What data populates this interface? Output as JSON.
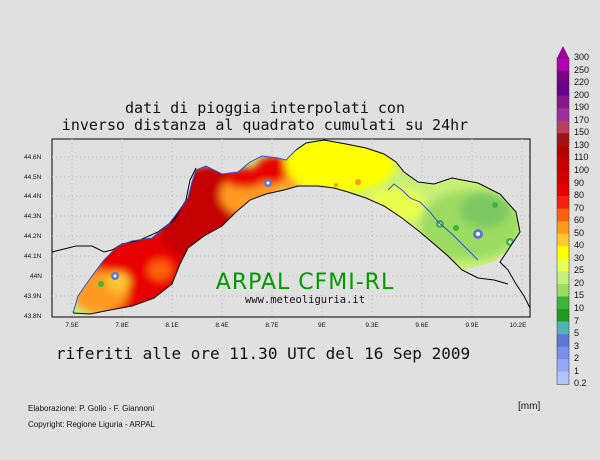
{
  "title": {
    "line1": "dati di pioggia interpolati con",
    "line2": "inverso distanza al quadrato cumulati su 24hr"
  },
  "subtitle": "riferiti alle ore 11.30 UTC del 16 Sep 2009",
  "map": {
    "watermark": "ARPAL CFMI-RL",
    "website": "www.meteoliguria.it",
    "lat_labels": [
      "44.6N",
      "44.5N",
      "44.4N",
      "44.3N",
      "44.2N",
      "44.1N",
      "44N",
      "43.9N",
      "43.8N"
    ],
    "lon_labels": [
      "7.5E",
      "7.8E",
      "8.1E",
      "8.4E",
      "8.7E",
      "9E",
      "9.3E",
      "9.6E",
      "9.9E",
      "10.2E"
    ]
  },
  "legend": {
    "unit": "[mm]",
    "levels": [
      "300",
      "250",
      "220",
      "200",
      "190",
      "170",
      "150",
      "130",
      "110",
      "100",
      "90",
      "80",
      "70",
      "60",
      "50",
      "40",
      "30",
      "25",
      "20",
      "15",
      "10",
      "7",
      "5",
      "3",
      "2",
      "1",
      "0.2"
    ],
    "colors": [
      "#9c009c",
      "#b400b4",
      "#7a0084",
      "#64008c",
      "#88188a",
      "#9c3098",
      "#b84060",
      "#a01414",
      "#b40000",
      "#c40000",
      "#d40000",
      "#e80000",
      "#f42010",
      "#ff6010",
      "#ff9a20",
      "#ffc830",
      "#ffff00",
      "#e8ff50",
      "#c8f078",
      "#9cdc64",
      "#3cb43c",
      "#1e9c1e",
      "#50b4b4",
      "#5c78d4",
      "#7890e8",
      "#96aaf4",
      "#b4c4fc"
    ]
  },
  "credits": {
    "line1": "Elaborazione: P. Gollo - F. Giannoni",
    "line2": "Copyright: Regione Liguria - ARPAL"
  }
}
